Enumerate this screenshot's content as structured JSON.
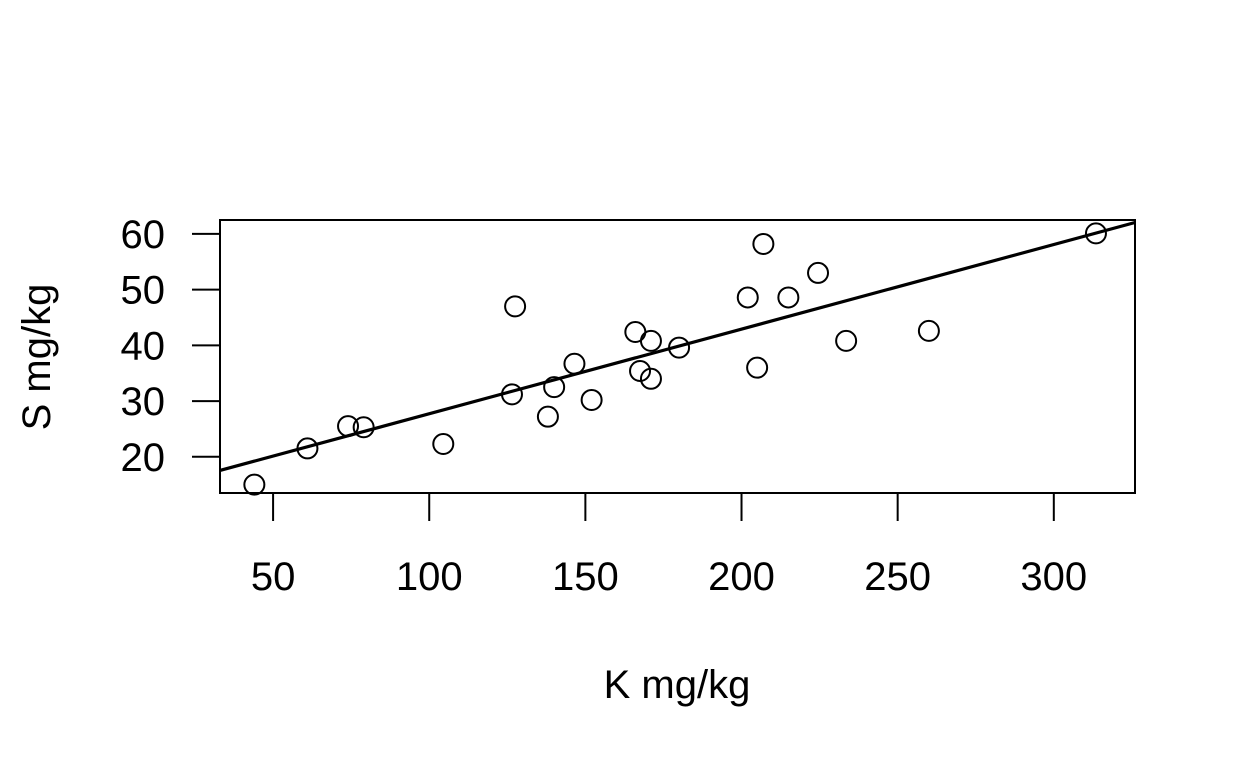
{
  "chart_data": {
    "type": "scatter",
    "xlabel": "K mg/kg",
    "ylabel": "S mg/kg",
    "xlim": [
      33,
      326
    ],
    "ylim": [
      13.5,
      62.5
    ],
    "x_ticks": [
      50,
      100,
      150,
      200,
      250,
      300
    ],
    "y_ticks": [
      20,
      30,
      40,
      50,
      60
    ],
    "grid": false,
    "points": [
      {
        "x": 44,
        "y": 15
      },
      {
        "x": 61,
        "y": 21.5
      },
      {
        "x": 74,
        "y": 25.5
      },
      {
        "x": 79,
        "y": 25.3
      },
      {
        "x": 104.5,
        "y": 22.3
      },
      {
        "x": 126.5,
        "y": 31.2
      },
      {
        "x": 127.5,
        "y": 47
      },
      {
        "x": 138,
        "y": 27.2
      },
      {
        "x": 140,
        "y": 32.5
      },
      {
        "x": 146.5,
        "y": 36.7
      },
      {
        "x": 152,
        "y": 30.2
      },
      {
        "x": 166,
        "y": 42.4
      },
      {
        "x": 167.5,
        "y": 35.4
      },
      {
        "x": 171,
        "y": 34
      },
      {
        "x": 171,
        "y": 40.8
      },
      {
        "x": 180,
        "y": 39.6
      },
      {
        "x": 202,
        "y": 48.6
      },
      {
        "x": 205,
        "y": 36
      },
      {
        "x": 207,
        "y": 58.2
      },
      {
        "x": 215,
        "y": 48.6
      },
      {
        "x": 224.5,
        "y": 53
      },
      {
        "x": 233.5,
        "y": 40.8
      },
      {
        "x": 260,
        "y": 42.6
      },
      {
        "x": 313.5,
        "y": 60.1
      }
    ],
    "regression_line": {
      "x": [
        33,
        326
      ],
      "y": [
        17.55,
        62.05
      ]
    }
  }
}
